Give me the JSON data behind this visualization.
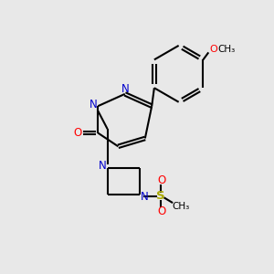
{
  "bg_color": "#e8e8e8",
  "bond_color": "#000000",
  "n_color": "#0000cc",
  "o_color": "#ff0000",
  "s_color": "#aaaa00",
  "line_width": 1.5,
  "fig_width": 3.0,
  "fig_height": 3.0,
  "dpi": 100,
  "xlim": [
    0,
    10
  ],
  "ylim": [
    0,
    10
  ]
}
